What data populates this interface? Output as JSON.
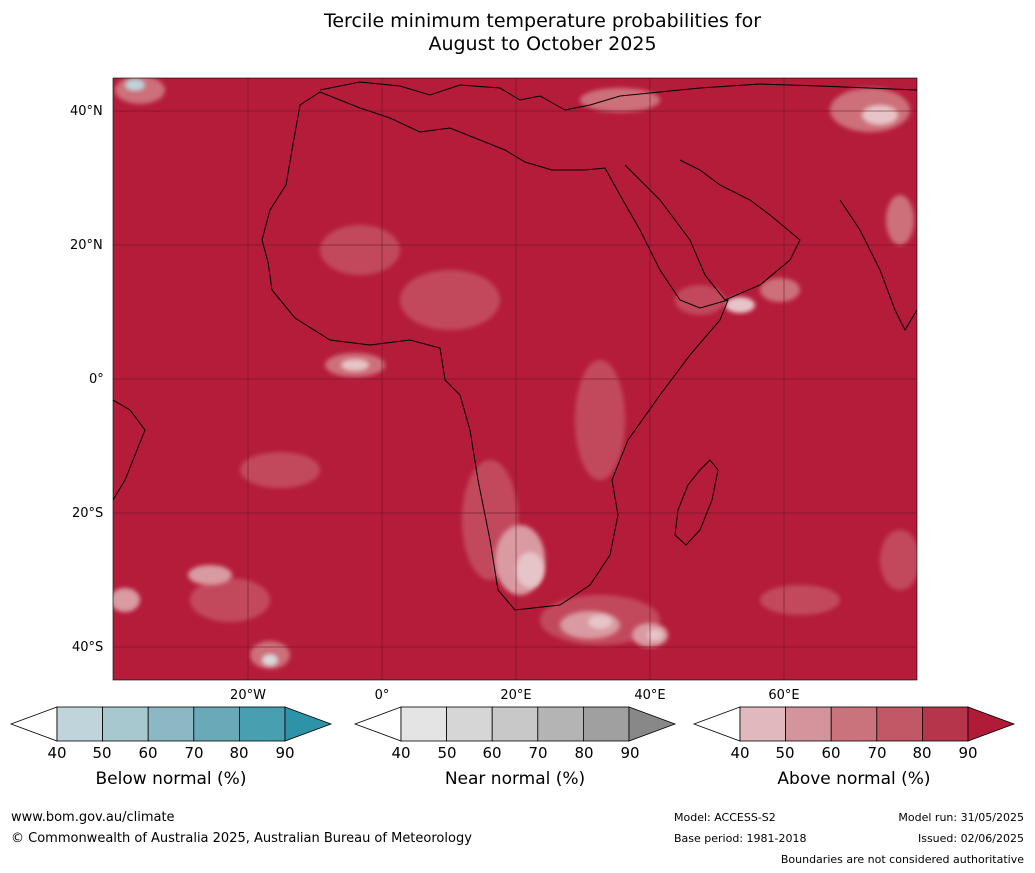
{
  "title": {
    "line1": "Tercile minimum temperature probabilities for",
    "line2": "August to October 2025"
  },
  "map": {
    "lat_labels": [
      "40°N",
      "20°N",
      "0°",
      "20°S",
      "40°S"
    ],
    "lon_labels": [
      "20°W",
      "0°",
      "20°E",
      "40°E",
      "60°E"
    ],
    "colors": {
      "ocean_base": "#b51c3a",
      "land_base": "#b51c3a",
      "level_80": "#c24a5c",
      "level_70": "#cd6f7a",
      "level_60": "#d99aa1",
      "level_50": "#e6c4c7",
      "near_normal": "#d9d9d9",
      "below_normal": "#bcd3d9",
      "coastline": "#000000",
      "borders": "#808080",
      "grid": "#5a1020"
    }
  },
  "colorbars": [
    {
      "label": "Below normal (%)",
      "ticks": [
        "40",
        "50",
        "60",
        "70",
        "80",
        "90"
      ],
      "colors": [
        "#ffffff",
        "#bfd5db",
        "#a8c8cf",
        "#8bb8c3",
        "#6aaab8",
        "#479fb0",
        "#2f93a8"
      ]
    },
    {
      "label": "Near normal (%)",
      "ticks": [
        "40",
        "50",
        "60",
        "70",
        "80",
        "90"
      ],
      "colors": [
        "#ffffff",
        "#e4e4e4",
        "#d6d6d6",
        "#c8c8c8",
        "#b4b4b4",
        "#a0a0a0",
        "#888888"
      ]
    },
    {
      "label": "Above normal (%)",
      "ticks": [
        "40",
        "50",
        "60",
        "70",
        "80",
        "90"
      ],
      "colors": [
        "#ffffff",
        "#e0b8be",
        "#d4949c",
        "#cb737c",
        "#c25866",
        "#b7354b",
        "#b01c38"
      ]
    }
  ],
  "footer": {
    "website": "www.bom.gov.au/climate",
    "copyright": "© Commonwealth of Australia 2025, Australian Bureau of Meteorology",
    "model": "Model: ACCESS-S2",
    "base_period": "Base period: 1981-2018",
    "model_run": "Model run: 31/05/2025",
    "issued": "Issued: 02/06/2025",
    "disclaimer": "Boundaries are not considered authoritative"
  }
}
